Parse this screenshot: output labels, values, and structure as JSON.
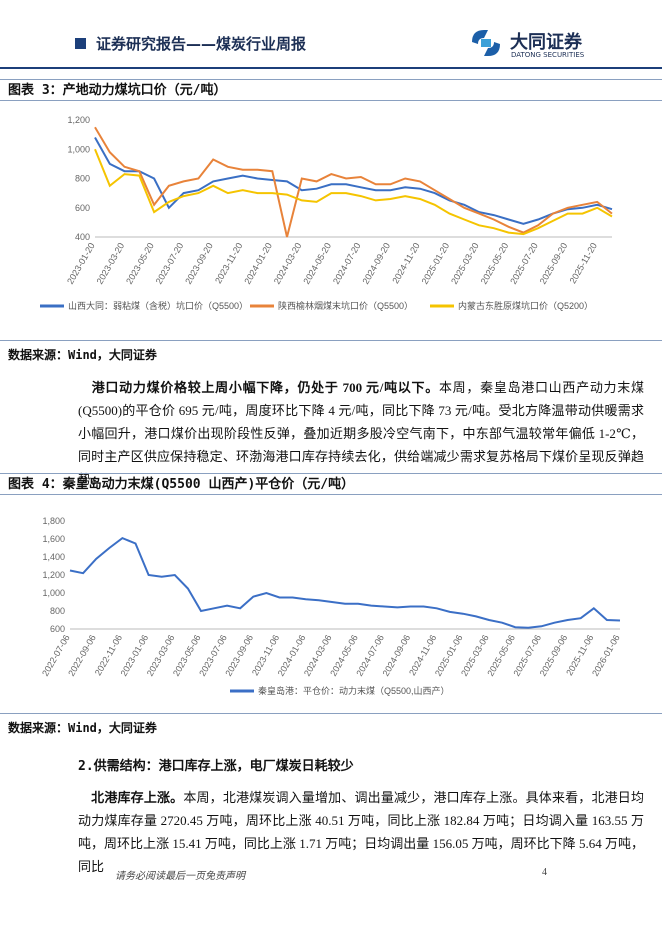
{
  "header": {
    "title": "证券研究报告——煤炭行业周报",
    "logo_text": "大同证券",
    "logo_sub": "DATONG SECURITIES"
  },
  "sources": [
    "数据来源：Wind，大同证券",
    "数据来源：Wind，大同证券"
  ],
  "paragraph1": {
    "lead": "港口动力煤价格较上周小幅下降，仍处于 700 元/吨以下。",
    "body": "本周，秦皇岛港口山西产动力末煤(Q5500)的平仓价 695 元/吨，周度环比下降 4 元/吨，同比下降 73 元/吨。受北方降温带动供暖需求小幅回升，港口煤价出现阶段性反弹，叠加近期多股冷空气南下，中东部气温较常年偏低 1-2℃，同时主产区供应保持稳定、环渤海港口库存持续去化，供给端减少需求复苏格局下煤价呈现反弹趋势。"
  },
  "section_heading": "2.供需结构：港口库存上涨，电厂煤炭日耗较少",
  "paragraph2": {
    "lead": "北港库存上涨。",
    "body": "本周，北港煤炭调入量增加、调出量减少，港口库存上涨。具体来看，北港日均动力煤库存量 2720.45 万吨，周环比上涨 40.51 万吨，同比上涨 182.84 万吨；日均调入量 163.55 万吨，周环比上涨 15.41 万吨，同比上涨 1.71 万吨；日均调出量 156.05 万吨，周环比下降 5.64 万吨，同比"
  },
  "footer": {
    "disclaimer": "请务必阅读最后一页免责声明",
    "page": "4"
  },
  "chart_data": [
    {
      "type": "line",
      "title": "图表 3：产地动力煤坑口价（元/吨）",
      "categories": [
        "2023-01-20",
        null,
        "2023-03-20",
        null,
        "2023-05-20",
        null,
        "2023-07-20",
        null,
        "2023-09-20",
        null,
        "2023-11-20",
        null,
        "2024-01-20",
        null,
        "2024-03-20",
        null,
        "2024-05-20",
        null,
        "2024-07-20",
        null,
        "2024-09-20",
        null,
        "2024-11-20",
        null,
        "2025-01-20",
        null,
        "2025-03-20",
        null,
        "2025-05-20",
        null,
        "2025-07-20",
        null,
        "2025-09-20",
        null,
        "2025-11-20",
        null
      ],
      "series": [
        {
          "name": "山西大同：弱粘煤（含税）坑口价（Q5500）",
          "color": "#3a6fc4",
          "values": [
            1080,
            900,
            850,
            850,
            800,
            600,
            700,
            720,
            780,
            800,
            820,
            800,
            790,
            780,
            720,
            730,
            760,
            760,
            740,
            720,
            720,
            740,
            730,
            700,
            650,
            620,
            570,
            550,
            520,
            490,
            520,
            560,
            590,
            600,
            620,
            590
          ]
        },
        {
          "name": "陕西榆林烟煤末坑口价（Q5500）",
          "color": "#e8833a",
          "values": [
            1150,
            980,
            880,
            850,
            620,
            750,
            780,
            800,
            930,
            880,
            860,
            860,
            850,
            400,
            800,
            780,
            830,
            800,
            810,
            760,
            760,
            800,
            780,
            720,
            660,
            600,
            560,
            520,
            470,
            430,
            480,
            560,
            600,
            620,
            640,
            560
          ]
        },
        {
          "name": "内蒙古东胜原煤坑口价（Q5200）",
          "color": "#f5c400",
          "values": [
            1000,
            750,
            830,
            820,
            570,
            640,
            680,
            700,
            750,
            700,
            720,
            700,
            700,
            690,
            650,
            640,
            700,
            700,
            680,
            650,
            660,
            680,
            660,
            620,
            560,
            520,
            480,
            460,
            430,
            420,
            460,
            510,
            560,
            560,
            600,
            540
          ]
        }
      ],
      "ylim": [
        400,
        1200
      ],
      "yticks": [
        400,
        600,
        800,
        {
          "value": 1000,
          "label": "1,000"
        },
        {
          "value": 1200,
          "label": "1,200"
        }
      ],
      "grid": false
    },
    {
      "type": "line",
      "title": "图表 4：秦皇岛动力末煤(Q5500 山西产)平仓价（元/吨）",
      "categories": [
        "2022-07-06",
        null,
        "2022-09-06",
        null,
        "2022-11-06",
        null,
        "2023-01-06",
        null,
        "2023-03-06",
        null,
        "2023-05-06",
        null,
        "2023-07-06",
        null,
        "2023-09-06",
        null,
        "2023-11-06",
        null,
        "2024-01-06",
        null,
        "2024-03-06",
        null,
        "2024-05-06",
        null,
        "2024-07-06",
        null,
        "2024-09-06",
        null,
        "2024-11-06",
        null,
        "2025-01-06",
        null,
        "2025-03-06",
        null,
        "2025-05-06",
        null,
        "2025-07-06",
        null,
        "2025-09-06",
        null,
        "2025-11-06",
        null,
        "2026-01-06"
      ],
      "series": [
        {
          "name": "秦皇岛港：平仓价：动力末煤（Q5500,山西产）",
          "color": "#3b6fc6",
          "values": [
            1250,
            1220,
            1380,
            1500,
            1610,
            1550,
            1200,
            1180,
            1200,
            1050,
            800,
            830,
            860,
            830,
            960,
            1000,
            950,
            950,
            930,
            920,
            900,
            880,
            880,
            860,
            850,
            840,
            850,
            850,
            830,
            790,
            770,
            740,
            700,
            670,
            620,
            615,
            630,
            670,
            700,
            720,
            830,
            700,
            695
          ]
        }
      ],
      "ylim": [
        600,
        1800
      ],
      "yticks": [
        600,
        800,
        {
          "value": 1000,
          "label": "1,000"
        },
        {
          "value": 1200,
          "label": "1,200"
        },
        {
          "value": 1400,
          "label": "1,400"
        },
        {
          "value": 1600,
          "label": "1,600"
        },
        {
          "value": 1800,
          "label": "1,800"
        }
      ],
      "grid": false
    }
  ]
}
